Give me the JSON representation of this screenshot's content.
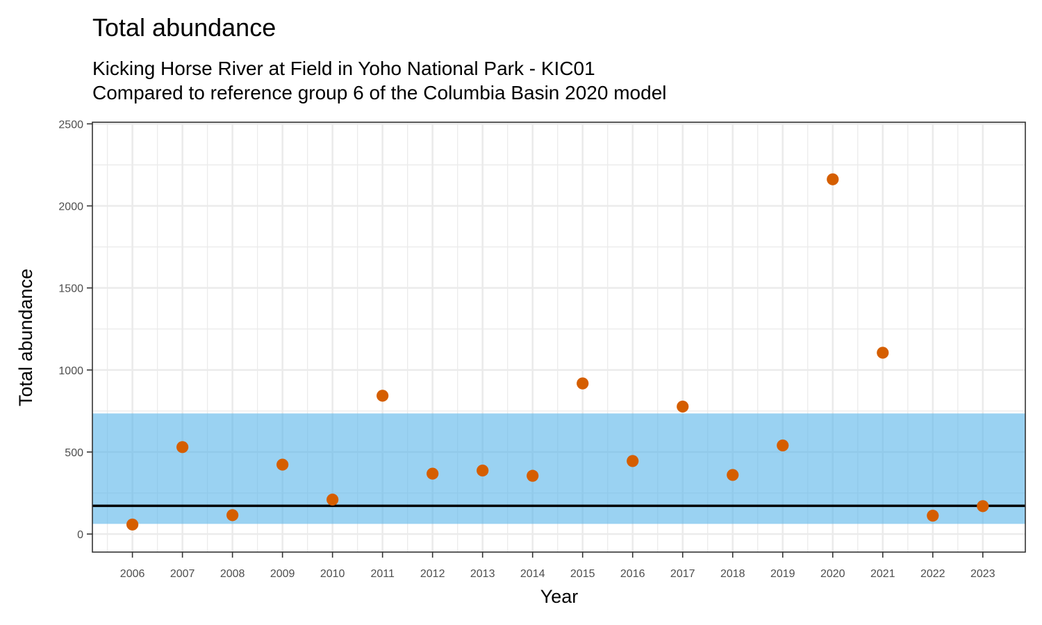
{
  "chart_data": {
    "type": "scatter",
    "title": "Total abundance",
    "subtitle_lines": [
      "Kicking Horse River at Field in Yoho National Park - KIC01",
      "Compared to reference group 6 of the Columbia Basin 2020 model"
    ],
    "xlabel": "Year",
    "ylabel": "Total abundance",
    "x": [
      2006,
      2007,
      2008,
      2009,
      2010,
      2011,
      2012,
      2013,
      2014,
      2015,
      2016,
      2017,
      2018,
      2019,
      2020,
      2021,
      2022,
      2023
    ],
    "x_tick_labels": [
      "2006",
      "2007",
      "2008",
      "2009",
      "2010",
      "2011",
      "2012",
      "2013",
      "2014",
      "2015",
      "2016",
      "2017",
      "2018",
      "2019",
      "2020",
      "2021",
      "2022",
      "2023"
    ],
    "y": [
      58,
      530,
      115,
      423,
      210,
      843,
      368,
      387,
      355,
      918,
      445,
      777,
      360,
      540,
      2162,
      1105,
      112,
      170
    ],
    "y_tick_labels": [
      "0",
      "500",
      "1000",
      "1500",
      "2000",
      "2500"
    ],
    "y_ticks": [
      0,
      500,
      1000,
      1500,
      2000,
      2500
    ],
    "ylim": [
      -110,
      2510
    ],
    "xlim": [
      2005.2,
      2023.85
    ],
    "reference_band": {
      "lower": 62,
      "upper": 735,
      "color": "#56B4E9",
      "opacity": 0.6
    },
    "reference_line": {
      "value": 172,
      "color": "#000000"
    },
    "point_color": "#D55E00",
    "grid": true,
    "legend": "none"
  }
}
